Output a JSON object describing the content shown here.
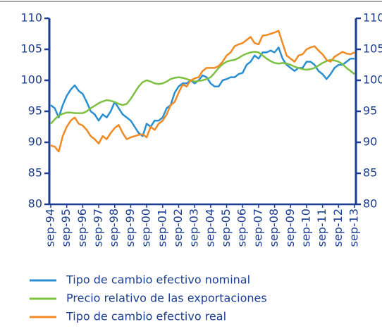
{
  "chart_data": {
    "type": "line",
    "categories": [
      "sep-94",
      null,
      null,
      null,
      "sep-95",
      null,
      null,
      null,
      "sep-96",
      null,
      null,
      null,
      "sep-97",
      null,
      null,
      null,
      "sep-98",
      null,
      null,
      null,
      "sep-99",
      null,
      null,
      null,
      "sep-00",
      null,
      null,
      null,
      "sep-01",
      null,
      null,
      null,
      "sep-02",
      null,
      null,
      null,
      "sep-03",
      null,
      null,
      null,
      "sep-04",
      null,
      null,
      null,
      "sep-05",
      null,
      null,
      null,
      "sep-06",
      null,
      null,
      null,
      "sep-07",
      null,
      null,
      null,
      "sep-08",
      null,
      null,
      null,
      "sep-09",
      null,
      null,
      null,
      "sep-10",
      null,
      null,
      null,
      "sep-11",
      null,
      null,
      null,
      "sep-12",
      null,
      null,
      null,
      "sep-13"
    ],
    "series": [
      {
        "name": "Tipo de cambio efectivo nominal",
        "color": "#2a8fd0",
        "values": [
          96,
          95.5,
          94,
          96,
          97.5,
          98.5,
          99.2,
          98.3,
          97.8,
          96.5,
          95,
          94.5,
          93.5,
          94.5,
          94,
          95,
          96.5,
          95.5,
          94.5,
          94,
          93.5,
          92.5,
          91.5,
          91,
          93,
          92.5,
          93.5,
          93.5,
          94,
          95.5,
          96,
          98,
          99,
          99.5,
          99.5,
          100,
          99.5,
          100,
          100.8,
          100.5,
          99.5,
          99,
          99,
          100,
          100.2,
          100.5,
          100.5,
          101,
          101.2,
          102.5,
          103,
          104,
          103.5,
          104.5,
          104.5,
          104.8,
          104.5,
          105.3,
          103.5,
          102.5,
          102,
          101.5,
          102,
          102,
          103,
          103,
          102.5,
          101.5,
          101,
          100.2,
          101,
          102,
          102.5,
          102.5,
          103,
          103.5,
          103.5
        ]
      },
      {
        "name": "Precio relativo de las exportaciones",
        "color": "#7dc142",
        "values": [
          93,
          93.7,
          94.3,
          94.6,
          94.8,
          94.8,
          94.7,
          94.7,
          94.7,
          95,
          95.5,
          95.9,
          96.3,
          96.6,
          96.8,
          96.7,
          96.5,
          96.2,
          96,
          96.2,
          97,
          98,
          99,
          99.7,
          100,
          99.8,
          99.5,
          99.4,
          99.5,
          99.8,
          100.2,
          100.4,
          100.5,
          100.4,
          100.2,
          100,
          99.8,
          99.9,
          100,
          100.2,
          100.5,
          101.2,
          102,
          102.6,
          103,
          103.2,
          103.3,
          103.6,
          104,
          104.3,
          104.5,
          104.6,
          104.5,
          104,
          103.5,
          103.1,
          102.8,
          102.7,
          102.8,
          102.7,
          102.5,
          102.2,
          102,
          101.8,
          101.7,
          101.8,
          102,
          102.4,
          102.8,
          103.1,
          103.3,
          103.2,
          103,
          102.6,
          102,
          101.5,
          101
        ]
      },
      {
        "name": "Tipo de cambio efectivo real",
        "color": "#f08a24",
        "values": [
          89.5,
          89.3,
          88.5,
          91,
          92.5,
          93.5,
          94,
          93,
          92.7,
          92,
          91,
          90.5,
          89.8,
          91,
          90.5,
          91.5,
          92.3,
          92.8,
          91.5,
          90.5,
          90.8,
          91,
          91.2,
          91.3,
          90.8,
          92.5,
          92,
          93,
          93.5,
          94.5,
          96,
          96.5,
          98,
          99.3,
          99,
          100,
          100.3,
          100.5,
          101.5,
          102,
          102,
          102,
          102.3,
          103,
          104,
          104.5,
          105.5,
          105.8,
          106,
          106.5,
          107,
          106,
          105.8,
          107.2,
          107.3,
          107.5,
          107.7,
          108,
          106,
          104,
          103.5,
          103,
          104,
          104.2,
          105,
          105.3,
          105.5,
          104.8,
          104.2,
          103.3,
          103,
          103.8,
          104.2,
          104.6,
          104.3,
          104.2,
          104.5
        ]
      }
    ],
    "ylim": [
      80,
      110
    ],
    "yticks": [
      80,
      85,
      90,
      95,
      100,
      105,
      110
    ],
    "y2lim": [
      80,
      110
    ],
    "y2ticks": [
      80,
      85,
      90,
      95,
      100,
      105,
      110
    ],
    "grid": false
  }
}
